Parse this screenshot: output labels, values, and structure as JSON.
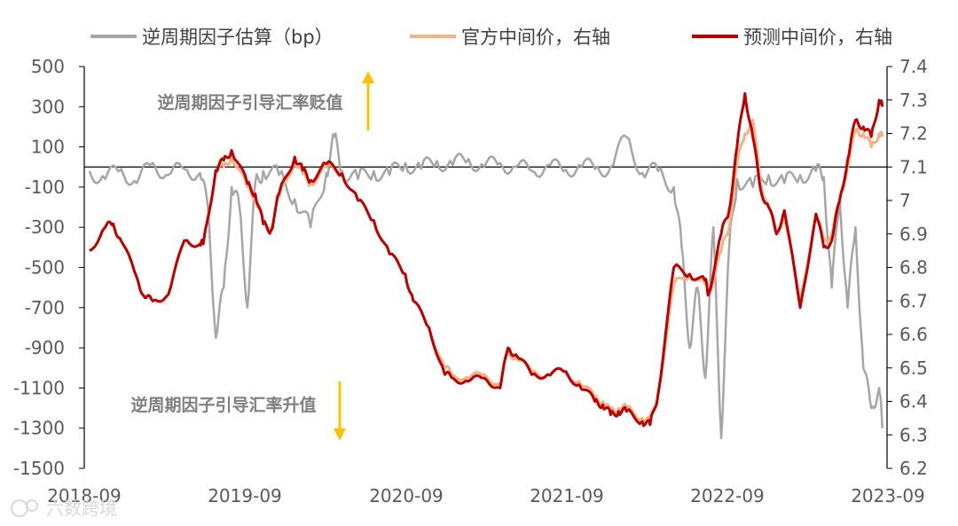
{
  "chart_data": {
    "type": "line",
    "legend": {
      "position": "top",
      "entries": [
        {
          "label": "逆周期因子估算（bp）",
          "color": "#a6a6a6"
        },
        {
          "label": "官方中间价，右轴",
          "color": "#f4b183"
        },
        {
          "label": "预测中间价，右轴",
          "color": "#c00000"
        }
      ]
    },
    "x_ticks": [
      "2018-09",
      "2019-09",
      "2020-09",
      "2021-09",
      "2022-09",
      "2023-09"
    ],
    "y_left": {
      "ticks": [
        "500",
        "300",
        "100",
        "-100",
        "-300",
        "-500",
        "-700",
        "-900",
        "-1100",
        "-1300",
        "-1500"
      ],
      "min": -1500,
      "max": 500
    },
    "y_right": {
      "ticks": [
        "7.4",
        "7.3",
        "7.2",
        "7.1",
        "7",
        "6.9",
        "6.8",
        "6.7",
        "6.6",
        "6.5",
        "6.4",
        "6.3",
        "6.2"
      ],
      "min": 6.2,
      "max": 7.4
    },
    "reference_line": {
      "axis": "right",
      "value": 7.1
    },
    "annotations": {
      "up": "逆周期因子引导汇率贬值",
      "down": "逆周期因子引导汇率升值",
      "arrow_color": "#ffc000"
    },
    "series": [
      {
        "name": "逆周期因子估算（bp）",
        "axis": "left",
        "color": "#a6a6a6",
        "x": [
          2018.7,
          2018.8,
          2018.9,
          2019.0,
          2019.1,
          2019.2,
          2019.3,
          2019.4,
          2019.45,
          2019.5,
          2019.55,
          2019.6,
          2019.65,
          2019.7,
          2019.75,
          2019.8,
          2019.9,
          2020.0,
          2020.1,
          2020.2,
          2020.25,
          2020.3,
          2020.4,
          2020.5,
          2020.6,
          2020.7,
          2020.8,
          2020.9,
          2021.0,
          2021.1,
          2021.2,
          2021.3,
          2021.4,
          2021.5,
          2021.6,
          2021.7,
          2021.8,
          2021.9,
          2022.0,
          2022.1,
          2022.2,
          2022.3,
          2022.4,
          2022.45,
          2022.5,
          2022.55,
          2022.6,
          2022.65,
          2022.7,
          2022.75,
          2022.8,
          2022.9,
          2023.0,
          2023.1,
          2023.2,
          2023.3,
          2023.35,
          2023.4,
          2023.45,
          2023.5,
          2023.55,
          2023.6,
          2023.65,
          2023.7,
          2023.72
        ],
        "values": [
          -20,
          -60,
          -10,
          -80,
          20,
          -40,
          -10,
          -30,
          -200,
          -850,
          -600,
          -100,
          -200,
          -700,
          -80,
          -20,
          -40,
          -160,
          -300,
          -30,
          150,
          -20,
          -60,
          -20,
          -40,
          20,
          -10,
          30,
          10,
          40,
          0,
          20,
          0,
          -20,
          10,
          -20,
          10,
          -10,
          0,
          150,
          -30,
          -20,
          -100,
          -400,
          -900,
          -600,
          -1050,
          -300,
          -1350,
          -400,
          -60,
          -100,
          -40,
          -80,
          -40,
          -20,
          -50,
          -600,
          -150,
          -700,
          -300,
          -1000,
          -1200,
          -1100,
          -1300
        ]
      },
      {
        "name": "官方中间价，右轴",
        "axis": "right",
        "color": "#f4b183",
        "x": [
          2018.7,
          2018.8,
          2018.85,
          2018.9,
          2019.0,
          2019.05,
          2019.1,
          2019.2,
          2019.3,
          2019.4,
          2019.42,
          2019.5,
          2019.55,
          2019.6,
          2019.7,
          2019.75,
          2019.8,
          2019.85,
          2019.9,
          2020.0,
          2020.05,
          2020.1,
          2020.2,
          2020.3,
          2020.4,
          2020.5,
          2020.6,
          2020.7,
          2020.75,
          2020.85,
          2020.95,
          2021.0,
          2021.1,
          2021.2,
          2021.3,
          2021.35,
          2021.4,
          2021.5,
          2021.6,
          2021.7,
          2021.8,
          2021.9,
          2021.95,
          2022.0,
          2022.05,
          2022.1,
          2022.2,
          2022.25,
          2022.3,
          2022.4,
          2022.5,
          2022.6,
          2022.62,
          2022.7,
          2022.75,
          2022.8,
          2022.85,
          2022.9,
          2022.95,
          2023.0,
          2023.05,
          2023.1,
          2023.2,
          2023.3,
          2023.35,
          2023.4,
          2023.45,
          2023.5,
          2023.55,
          2023.6,
          2023.65,
          2023.7,
          2023.72
        ],
        "values": [
          6.85,
          6.92,
          6.93,
          6.88,
          6.77,
          6.71,
          6.7,
          6.72,
          6.88,
          6.87,
          6.87,
          7.09,
          7.1,
          7.13,
          7.04,
          7.01,
          6.93,
          6.92,
          7.01,
          7.12,
          7.08,
          7.05,
          7.1,
          7.08,
          7.0,
          6.94,
          6.84,
          6.78,
          6.7,
          6.62,
          6.5,
          6.48,
          6.47,
          6.48,
          6.45,
          6.55,
          6.53,
          6.49,
          6.48,
          6.49,
          6.46,
          6.41,
          6.4,
          6.37,
          6.38,
          6.38,
          6.35,
          6.34,
          6.42,
          6.75,
          6.78,
          6.75,
          6.72,
          6.85,
          6.92,
          7.11,
          7.2,
          7.24,
          7.05,
          6.98,
          6.91,
          6.95,
          6.7,
          6.96,
          6.88,
          6.9,
          7.0,
          7.1,
          7.21,
          7.2,
          7.16,
          7.2,
          7.19
        ]
      },
      {
        "name": "预测中间价，右轴",
        "axis": "right",
        "color": "#c00000",
        "x": [
          2018.7,
          2018.8,
          2018.85,
          2018.9,
          2019.0,
          2019.05,
          2019.1,
          2019.2,
          2019.3,
          2019.4,
          2019.42,
          2019.5,
          2019.55,
          2019.6,
          2019.7,
          2019.75,
          2019.8,
          2019.85,
          2019.9,
          2020.0,
          2020.05,
          2020.1,
          2020.2,
          2020.3,
          2020.4,
          2020.5,
          2020.6,
          2020.7,
          2020.75,
          2020.85,
          2020.95,
          2021.0,
          2021.1,
          2021.2,
          2021.3,
          2021.35,
          2021.4,
          2021.5,
          2021.6,
          2021.7,
          2021.8,
          2021.9,
          2021.95,
          2022.0,
          2022.05,
          2022.1,
          2022.2,
          2022.25,
          2022.3,
          2022.4,
          2022.5,
          2022.6,
          2022.62,
          2022.7,
          2022.75,
          2022.8,
          2022.85,
          2022.9,
          2022.95,
          2023.0,
          2023.05,
          2023.1,
          2023.2,
          2023.3,
          2023.35,
          2023.4,
          2023.45,
          2023.5,
          2023.55,
          2023.6,
          2023.65,
          2023.7,
          2023.72
        ],
        "values": [
          6.85,
          6.92,
          6.93,
          6.88,
          6.77,
          6.71,
          6.7,
          6.72,
          6.88,
          6.87,
          6.87,
          7.09,
          7.12,
          7.15,
          7.05,
          7.02,
          6.93,
          6.91,
          7.02,
          7.13,
          7.09,
          7.06,
          7.11,
          7.08,
          7.0,
          6.94,
          6.84,
          6.78,
          6.7,
          6.62,
          6.48,
          6.47,
          6.46,
          6.47,
          6.44,
          6.56,
          6.54,
          6.48,
          6.48,
          6.49,
          6.45,
          6.4,
          6.39,
          6.36,
          6.37,
          6.37,
          6.34,
          6.33,
          6.42,
          6.8,
          6.78,
          6.76,
          6.72,
          6.9,
          6.97,
          7.16,
          7.32,
          7.19,
          7.03,
          6.98,
          6.9,
          6.97,
          6.68,
          6.96,
          6.86,
          6.88,
          7.0,
          7.12,
          7.24,
          7.22,
          7.19,
          7.3,
          7.28
        ]
      }
    ]
  },
  "watermark": "六数跨境"
}
